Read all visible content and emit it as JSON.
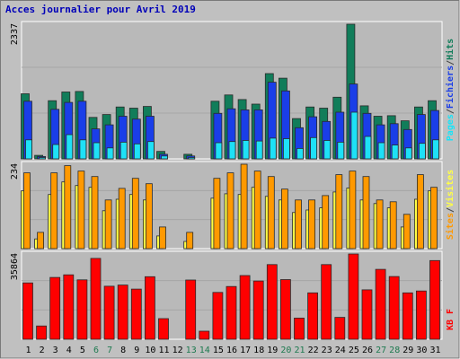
{
  "chart_data": [
    {
      "type": "bar",
      "title": "Acces journalier pour Avril 2019",
      "categories": [
        "1",
        "2",
        "3",
        "4",
        "5",
        "6",
        "7",
        "8",
        "9",
        "10",
        "11",
        "12",
        "13",
        "14",
        "15",
        "16",
        "17",
        "18",
        "19",
        "20",
        "21",
        "22",
        "23",
        "24",
        "25",
        "26",
        "27",
        "28",
        "29",
        "30",
        "31"
      ],
      "weekend_days": [
        "6",
        "7",
        "13",
        "14",
        "20",
        "21",
        "27",
        "28"
      ],
      "y_max_label": "2337",
      "ylim": [
        0,
        2337
      ],
      "legend": [
        "Pages",
        "/",
        "Fichiers",
        "/",
        "Hits"
      ],
      "series": [
        {
          "name": "Hits",
          "color": "#117d5a",
          "values": [
            1130,
            60,
            1010,
            1160,
            1170,
            720,
            770,
            900,
            880,
            910,
            130,
            0,
            80,
            0,
            1000,
            1110,
            1030,
            950,
            1480,
            1400,
            700,
            900,
            880,
            1070,
            2337,
            920,
            740,
            750,
            660,
            900,
            1010
          ]
        },
        {
          "name": "Fichiers",
          "color": "#1a3ee8",
          "values": [
            1000,
            40,
            860,
            980,
            1000,
            520,
            590,
            740,
            690,
            740,
            80,
            0,
            50,
            0,
            790,
            870,
            850,
            850,
            1330,
            1180,
            540,
            730,
            650,
            810,
            1300,
            790,
            590,
            610,
            510,
            770,
            840
          ]
        },
        {
          "name": "Pages",
          "color": "#1ee1f7",
          "values": [
            330,
            20,
            250,
            420,
            330,
            280,
            190,
            290,
            260,
            300,
            50,
            0,
            20,
            0,
            280,
            300,
            320,
            310,
            360,
            350,
            180,
            370,
            320,
            290,
            810,
            390,
            280,
            240,
            190,
            270,
            330
          ]
        }
      ]
    },
    {
      "type": "bar",
      "categories": [
        "1",
        "2",
        "3",
        "4",
        "5",
        "6",
        "7",
        "8",
        "9",
        "10",
        "11",
        "12",
        "13",
        "14",
        "15",
        "16",
        "17",
        "18",
        "19",
        "20",
        "21",
        "22",
        "23",
        "24",
        "25",
        "26",
        "27",
        "28",
        "29",
        "30",
        "31"
      ],
      "y_max_label": "234",
      "ylim": [
        0,
        234
      ],
      "legend": [
        "Sites",
        "/",
        "Visites"
      ],
      "series": [
        {
          "name": "Visites",
          "color": "#ffff44",
          "values": [
            160,
            27,
            150,
            185,
            175,
            170,
            105,
            137,
            150,
            135,
            35,
            0,
            20,
            0,
            140,
            152,
            150,
            170,
            145,
            135,
            100,
            107,
            113,
            157,
            168,
            135,
            125,
            113,
            60,
            137,
            160
          ]
        },
        {
          "name": "Sites",
          "color": "#ff9900",
          "values": [
            210,
            45,
            210,
            230,
            215,
            200,
            135,
            167,
            195,
            180,
            60,
            0,
            45,
            0,
            195,
            210,
            234,
            215,
            200,
            165,
            135,
            135,
            147,
            205,
            215,
            200,
            135,
            130,
            95,
            205,
            170
          ]
        }
      ]
    },
    {
      "type": "bar",
      "categories": [
        "1",
        "2",
        "3",
        "4",
        "5",
        "6",
        "7",
        "8",
        "9",
        "10",
        "11",
        "12",
        "13",
        "14",
        "15",
        "16",
        "17",
        "18",
        "19",
        "20",
        "21",
        "22",
        "23",
        "24",
        "25",
        "26",
        "27",
        "28",
        "29",
        "30",
        "31"
      ],
      "y_max_label": "35864",
      "ylim": [
        0,
        35864
      ],
      "legend": [
        "KB F"
      ],
      "series": [
        {
          "name": "KB F",
          "color": "#ff0000",
          "values": [
            23700,
            5600,
            26000,
            27100,
            25000,
            34000,
            22300,
            22800,
            21100,
            26300,
            8700,
            0,
            24900,
            3400,
            19700,
            22200,
            26800,
            24500,
            31400,
            25100,
            8900,
            19500,
            31400,
            9200,
            35864,
            20800,
            29400,
            26400,
            19500,
            20300,
            33100
          ]
        }
      ]
    }
  ]
}
